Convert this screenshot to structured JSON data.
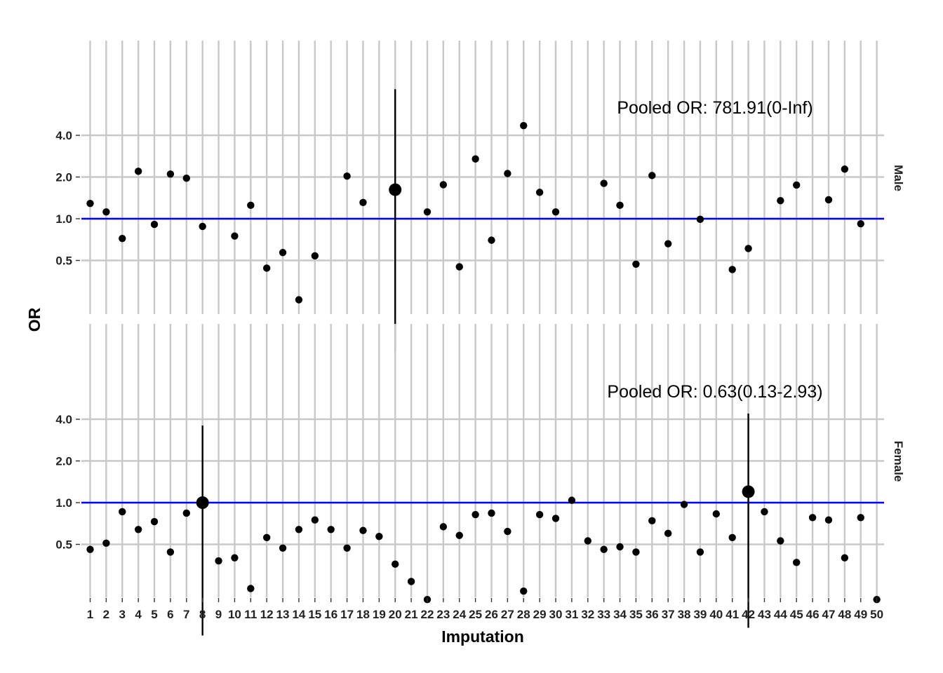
{
  "chart_data": {
    "type": "scatter",
    "xlabel": "Imputation",
    "ylabel": "OR",
    "y_scale": "log2",
    "y_ticks": [
      0.5,
      1.0,
      2.0,
      4.0
    ],
    "y_tick_labels": [
      "0.5",
      "1.0",
      "2.0",
      "4.0"
    ],
    "x": [
      1,
      2,
      3,
      4,
      5,
      6,
      7,
      8,
      9,
      10,
      11,
      12,
      13,
      14,
      15,
      16,
      17,
      18,
      19,
      20,
      21,
      22,
      23,
      24,
      25,
      26,
      27,
      28,
      29,
      30,
      31,
      32,
      33,
      34,
      35,
      36,
      37,
      38,
      39,
      40,
      41,
      42,
      43,
      44,
      45,
      46,
      47,
      48,
      49,
      50
    ],
    "x_tick_labels": [
      "1",
      "2",
      "3",
      "4",
      "5",
      "6",
      "7",
      "8",
      "9",
      "10",
      "11",
      "12",
      "13",
      "14",
      "15",
      "16",
      "17",
      "18",
      "19",
      "20",
      "21",
      "22",
      "23",
      "24",
      "25",
      "26",
      "27",
      "28",
      "29",
      "30",
      "31",
      "32",
      "33",
      "34",
      "35",
      "36",
      "37",
      "38",
      "39",
      "40",
      "41",
      "42",
      "43",
      "44",
      "45",
      "46",
      "47",
      "48",
      "49",
      "50"
    ],
    "reference_line": {
      "y": 1.0,
      "color": "#0000ff"
    },
    "grid": true,
    "panels": [
      {
        "strip_label": "Male",
        "annotation": "Pooled OR: 781.91(0-Inf)",
        "points": [
          {
            "x": 1,
            "y": 1.29
          },
          {
            "x": 2,
            "y": 1.12
          },
          {
            "x": 3,
            "y": 0.72
          },
          {
            "x": 4,
            "y": 2.2
          },
          {
            "x": 5,
            "y": 0.91
          },
          {
            "x": 6,
            "y": 2.1
          },
          {
            "x": 7,
            "y": 1.96
          },
          {
            "x": 8,
            "y": 0.88
          },
          {
            "x": 10,
            "y": 0.75
          },
          {
            "x": 11,
            "y": 1.25
          },
          {
            "x": 12,
            "y": 0.44
          },
          {
            "x": 13,
            "y": 0.57
          },
          {
            "x": 14,
            "y": 0.26
          },
          {
            "x": 15,
            "y": 0.54
          },
          {
            "x": 17,
            "y": 2.03
          },
          {
            "x": 18,
            "y": 1.31
          },
          {
            "x": 20,
            "y": 1.62,
            "highlight": true
          },
          {
            "x": 22,
            "y": 1.12
          },
          {
            "x": 23,
            "y": 1.76
          },
          {
            "x": 24,
            "y": 0.45
          },
          {
            "x": 25,
            "y": 2.7
          },
          {
            "x": 26,
            "y": 0.7
          },
          {
            "x": 27,
            "y": 2.12
          },
          {
            "x": 28,
            "y": 4.7
          },
          {
            "x": 29,
            "y": 1.55
          },
          {
            "x": 30,
            "y": 1.12
          },
          {
            "x": 33,
            "y": 1.8
          },
          {
            "x": 34,
            "y": 1.25
          },
          {
            "x": 35,
            "y": 0.47
          },
          {
            "x": 36,
            "y": 2.05
          },
          {
            "x": 37,
            "y": 0.66
          },
          {
            "x": 39,
            "y": 0.99
          },
          {
            "x": 41,
            "y": 0.43
          },
          {
            "x": 42,
            "y": 0.61
          },
          {
            "x": 44,
            "y": 1.35
          },
          {
            "x": 45,
            "y": 1.75
          },
          {
            "x": 47,
            "y": 1.37
          },
          {
            "x": 48,
            "y": 2.28
          },
          {
            "x": 49,
            "y": 0.92
          }
        ],
        "error_bars": [
          {
            "x": 20,
            "low": 0.11,
            "high": 8.6
          }
        ]
      },
      {
        "strip_label": "Female",
        "annotation": "Pooled OR: 0.63(0.13-2.93)",
        "points": [
          {
            "x": 1,
            "y": 0.46
          },
          {
            "x": 2,
            "y": 0.51
          },
          {
            "x": 3,
            "y": 0.86
          },
          {
            "x": 4,
            "y": 0.64
          },
          {
            "x": 5,
            "y": 0.73
          },
          {
            "x": 6,
            "y": 0.44
          },
          {
            "x": 7,
            "y": 0.84
          },
          {
            "x": 8,
            "y": 1.0,
            "highlight": true
          },
          {
            "x": 9,
            "y": 0.38
          },
          {
            "x": 10,
            "y": 0.4
          },
          {
            "x": 11,
            "y": 0.24
          },
          {
            "x": 12,
            "y": 0.56
          },
          {
            "x": 13,
            "y": 0.47
          },
          {
            "x": 14,
            "y": 0.64
          },
          {
            "x": 15,
            "y": 0.75
          },
          {
            "x": 16,
            "y": 0.64
          },
          {
            "x": 17,
            "y": 0.47
          },
          {
            "x": 18,
            "y": 0.63
          },
          {
            "x": 19,
            "y": 0.57
          },
          {
            "x": 20,
            "y": 0.36
          },
          {
            "x": 21,
            "y": 0.27
          },
          {
            "x": 22,
            "y": 0.2
          },
          {
            "x": 23,
            "y": 0.67
          },
          {
            "x": 24,
            "y": 0.58
          },
          {
            "x": 25,
            "y": 0.82
          },
          {
            "x": 26,
            "y": 0.84
          },
          {
            "x": 27,
            "y": 0.62
          },
          {
            "x": 28,
            "y": 0.23
          },
          {
            "x": 29,
            "y": 0.82
          },
          {
            "x": 30,
            "y": 0.77
          },
          {
            "x": 31,
            "y": 1.04
          },
          {
            "x": 32,
            "y": 0.53
          },
          {
            "x": 33,
            "y": 0.46
          },
          {
            "x": 34,
            "y": 0.48
          },
          {
            "x": 35,
            "y": 0.44
          },
          {
            "x": 36,
            "y": 0.74
          },
          {
            "x": 37,
            "y": 0.6
          },
          {
            "x": 38,
            "y": 0.97
          },
          {
            "x": 39,
            "y": 0.44
          },
          {
            "x": 40,
            "y": 0.83
          },
          {
            "x": 41,
            "y": 0.56
          },
          {
            "x": 42,
            "y": 1.2,
            "highlight": true
          },
          {
            "x": 43,
            "y": 0.86
          },
          {
            "x": 44,
            "y": 0.53
          },
          {
            "x": 45,
            "y": 0.37
          },
          {
            "x": 46,
            "y": 0.78
          },
          {
            "x": 47,
            "y": 0.75
          },
          {
            "x": 48,
            "y": 0.4
          },
          {
            "x": 49,
            "y": 0.78
          },
          {
            "x": 50,
            "y": 0.2
          }
        ],
        "error_bars": [
          {
            "x": 8,
            "low": 0.11,
            "high": 3.6
          },
          {
            "x": 42,
            "low": 0.125,
            "high": 4.4
          }
        ]
      }
    ]
  }
}
